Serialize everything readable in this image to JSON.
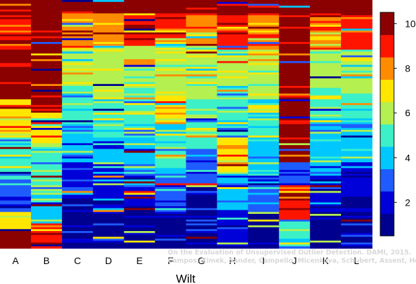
{
  "chart_data": {
    "type": "heatmap",
    "title": "",
    "xlabel": "Wilt",
    "ylabel": "",
    "x_categories": [
      "A",
      "B",
      "C",
      "D",
      "E",
      "F",
      "G",
      "H",
      "I",
      "J",
      "K",
      "L"
    ],
    "colorbar": {
      "range": [
        0.5,
        10.5
      ],
      "ticks": [
        "2",
        "4",
        "6",
        "8",
        "10"
      ],
      "colors": [
        "#00008f",
        "#0000d8",
        "#1f5cff",
        "#00c8ff",
        "#3cf0c8",
        "#b4f050",
        "#ffe600",
        "#ff8c00",
        "#ff1400",
        "#8b0000"
      ]
    },
    "columns": [
      {
        "name": "A",
        "bands": [
          [
            0.07,
            10
          ],
          [
            0.2,
            9
          ],
          [
            0.4,
            10
          ],
          [
            0.55,
            7
          ],
          [
            0.72,
            5
          ],
          [
            0.85,
            3
          ],
          [
            0.93,
            7
          ],
          [
            1.0,
            10
          ]
        ]
      },
      {
        "name": "B",
        "bands": [
          [
            0.1,
            10
          ],
          [
            0.45,
            10
          ],
          [
            0.6,
            7
          ],
          [
            0.78,
            5
          ],
          [
            0.9,
            4
          ],
          [
            1.0,
            9
          ]
        ]
      },
      {
        "name": "C",
        "bands": [
          [
            0.05,
            10
          ],
          [
            0.2,
            8
          ],
          [
            0.35,
            6
          ],
          [
            0.5,
            5
          ],
          [
            0.65,
            4
          ],
          [
            0.8,
            2
          ],
          [
            1.0,
            1
          ]
        ]
      },
      {
        "name": "D",
        "bands": [
          [
            0.05,
            10
          ],
          [
            0.2,
            8
          ],
          [
            0.4,
            6
          ],
          [
            0.55,
            5
          ],
          [
            0.7,
            4
          ],
          [
            0.85,
            2
          ],
          [
            1.0,
            1
          ]
        ]
      },
      {
        "name": "E",
        "bands": [
          [
            0.05,
            10
          ],
          [
            0.18,
            9
          ],
          [
            0.35,
            6
          ],
          [
            0.55,
            5
          ],
          [
            0.7,
            4
          ],
          [
            0.85,
            2
          ],
          [
            1.0,
            1
          ]
        ]
      },
      {
        "name": "F",
        "bands": [
          [
            0.05,
            10
          ],
          [
            0.15,
            9
          ],
          [
            0.35,
            6
          ],
          [
            0.5,
            7
          ],
          [
            0.7,
            5
          ],
          [
            0.85,
            3
          ],
          [
            1.0,
            1
          ]
        ]
      },
      {
        "name": "G",
        "bands": [
          [
            0.05,
            10
          ],
          [
            0.2,
            8
          ],
          [
            0.4,
            6
          ],
          [
            0.6,
            5
          ],
          [
            0.75,
            3
          ],
          [
            0.9,
            1
          ],
          [
            1.0,
            1
          ]
        ]
      },
      {
        "name": "H",
        "bands": [
          [
            0.05,
            10
          ],
          [
            0.2,
            9
          ],
          [
            0.35,
            6
          ],
          [
            0.55,
            5
          ],
          [
            0.7,
            7
          ],
          [
            0.85,
            4
          ],
          [
            1.0,
            2
          ]
        ]
      },
      {
        "name": "I",
        "bands": [
          [
            0.05,
            10
          ],
          [
            0.2,
            8
          ],
          [
            0.4,
            6
          ],
          [
            0.55,
            5
          ],
          [
            0.7,
            4
          ],
          [
            0.85,
            3
          ],
          [
            1.0,
            1
          ]
        ]
      },
      {
        "name": "J",
        "bands": [
          [
            0.1,
            10
          ],
          [
            0.65,
            10
          ],
          [
            0.75,
            3
          ],
          [
            0.88,
            9
          ],
          [
            1.0,
            5
          ]
        ]
      },
      {
        "name": "K",
        "bands": [
          [
            0.05,
            10
          ],
          [
            0.2,
            8
          ],
          [
            0.35,
            6
          ],
          [
            0.5,
            5
          ],
          [
            0.7,
            4
          ],
          [
            0.85,
            2
          ],
          [
            1.0,
            1
          ]
        ]
      },
      {
        "name": "L",
        "bands": [
          [
            0.05,
            10
          ],
          [
            0.2,
            9
          ],
          [
            0.35,
            6
          ],
          [
            0.5,
            5
          ],
          [
            0.65,
            4
          ],
          [
            0.8,
            2
          ],
          [
            1.0,
            1
          ]
        ]
      }
    ]
  },
  "watermark": {
    "line1": "On the Evaluation of Unsupervised Outlier Detection. DAMI, 2015.",
    "line2": "Campos, Zimek, Sander, Campello, Micenkova, Schubert, Assent, Houle"
  }
}
